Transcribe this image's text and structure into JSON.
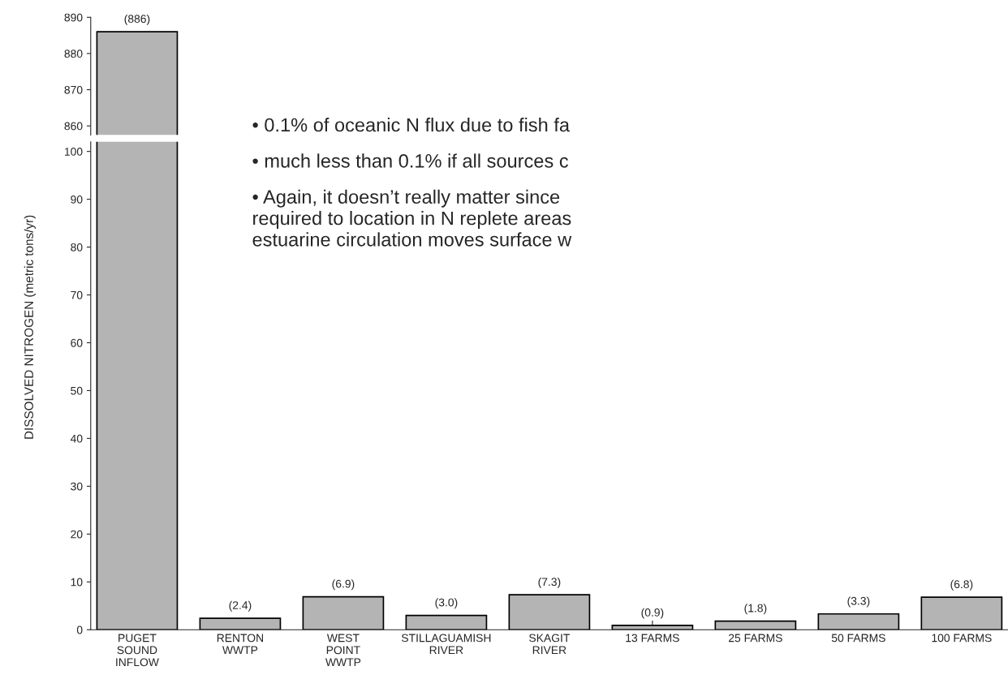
{
  "chart_data": [
    {
      "type": "bar",
      "categories": [
        null,
        null,
        null,
        null,
        null,
        null,
        null,
        null,
        null
      ],
      "values": [
        886,
        null,
        null,
        null,
        null,
        null,
        null,
        null,
        null
      ],
      "value_labels": [
        "(886)",
        null,
        null,
        null,
        null,
        null,
        null,
        null,
        null
      ],
      "color": "#b4b4b4",
      "ylim": [
        857.5,
        890
      ],
      "yticks": [
        860,
        870,
        880,
        890
      ],
      "tick_labels": "y",
      "grid": false,
      "annotations": [
        "• 0.1% of oceanic N flux due to fish fa",
        "• much less than 0.1% if all sources c",
        "• Again, it doesn’t really matter since\nrequired to location in N replete areas\nestuarine circulation moves surface w"
      ]
    },
    {
      "type": "bar",
      "categories": [
        "PUGET\nSOUND\nINFLOW",
        "RENTON\nWWTP",
        "WEST\nPOINT\nWWTP",
        "STILLAGUAMISH\nRIVER",
        "SKAGIT\nRIVER",
        "13 FARMS",
        "25 FARMS",
        "50 FARMS",
        "100 FARMS"
      ],
      "values": [
        null,
        2.4,
        6.9,
        3.0,
        7.3,
        0.9,
        1.8,
        3.3,
        6.8
      ],
      "value_labels": [
        null,
        "(2.4)",
        "(6.9)",
        "(3.0)",
        "(7.3)",
        "(0.9)",
        "(1.8)",
        "(3.3)",
        "(6.8)"
      ],
      "color": "#b4b4b4",
      "ylim": [
        0,
        102
      ],
      "yticks": [
        0,
        10,
        20,
        30,
        40,
        50,
        60,
        70,
        80,
        90,
        100
      ],
      "grid": false,
      "ylabel": "DISSOLVED NITROGEN (metric tons/yr)"
    }
  ]
}
